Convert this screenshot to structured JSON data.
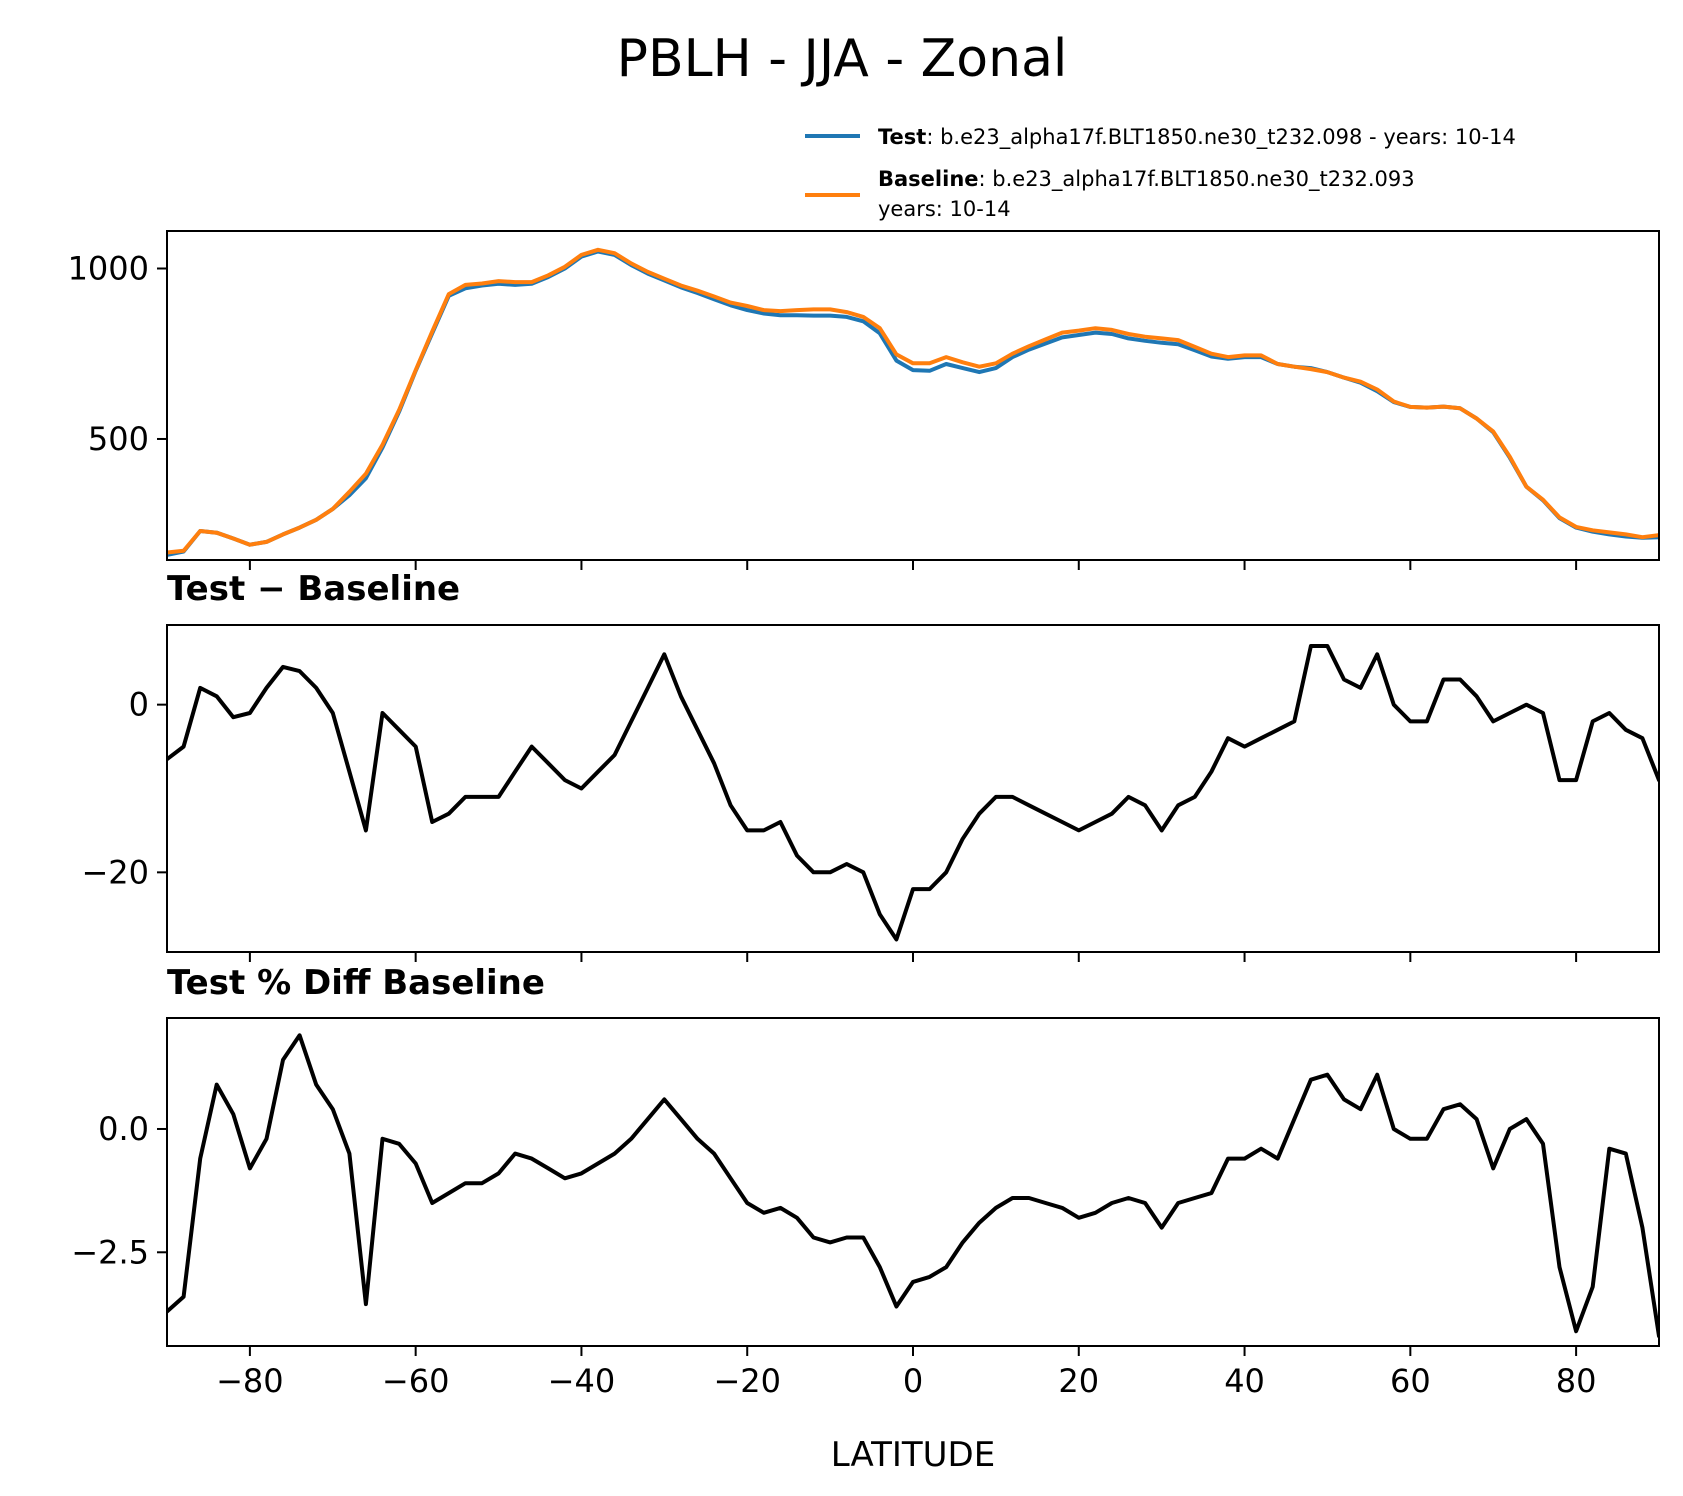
{
  "chart_data": [
    {
      "type": "line",
      "title": "PBLH - JJA - Zonal",
      "xlim": [
        -90,
        90
      ],
      "ylim": [
        145,
        1110
      ],
      "yticks": [
        500,
        1000
      ],
      "ytick_labels": [
        "500",
        "1000"
      ],
      "legend": {
        "placement": "upper-right outside",
        "entries": [
          {
            "name": "Test",
            "text": ": b.e23_alpha17f.BLT1850.ne30_t232.098 - years: 10-14",
            "text2": "",
            "color": "#1f77b4"
          },
          {
            "name": "Baseline",
            "text": ": b.e23_alpha17f.BLT1850.ne30_t232.093",
            "text2": "years: 10-14",
            "color": "#ff7f0e"
          }
        ]
      },
      "series": [
        {
          "name": "Test",
          "color": "#1f77b4",
          "x": [
            -90,
            -88,
            -86,
            -84,
            -82,
            -80,
            -78,
            -76,
            -74,
            -72,
            -70,
            -68,
            -66,
            -64,
            -62,
            -60,
            -58,
            -56,
            -54,
            -52,
            -50,
            -48,
            -46,
            -44,
            -42,
            -40,
            -38,
            -36,
            -34,
            -32,
            -30,
            -28,
            -26,
            -24,
            -22,
            -20,
            -18,
            -16,
            -14,
            -12,
            -10,
            -8,
            -6,
            -4,
            -2,
            0,
            2,
            4,
            6,
            8,
            10,
            12,
            14,
            16,
            18,
            20,
            22,
            24,
            26,
            28,
            30,
            32,
            34,
            36,
            38,
            40,
            42,
            44,
            46,
            48,
            50,
            52,
            54,
            56,
            58,
            60,
            62,
            64,
            66,
            68,
            70,
            72,
            74,
            76,
            78,
            80,
            82,
            84,
            86,
            88,
            90
          ],
          "y": [
            160,
            170,
            230,
            225,
            208,
            190,
            198,
            220,
            240,
            263,
            295,
            335,
            385,
            475,
            580,
            700,
            810,
            920,
            942,
            950,
            955,
            952,
            955,
            975,
            1000,
            1035,
            1050,
            1040,
            1010,
            985,
            965,
            945,
            928,
            910,
            892,
            878,
            868,
            863,
            863,
            862,
            862,
            858,
            845,
            810,
            730,
            702,
            700,
            720,
            708,
            696,
            708,
            740,
            762,
            780,
            798,
            805,
            812,
            808,
            795,
            788,
            782,
            778,
            760,
            742,
            735,
            740,
            740,
            720,
            712,
            708,
            696,
            680,
            665,
            640,
            608,
            594,
            592,
            595,
            590,
            560,
            520,
            445,
            360,
            320,
            268,
            240,
            228,
            220,
            214,
            210,
            212
          ]
        },
        {
          "name": "Baseline",
          "color": "#ff7f0e",
          "x": [
            -90,
            -88,
            -86,
            -84,
            -82,
            -80,
            -78,
            -76,
            -74,
            -72,
            -70,
            -68,
            -66,
            -64,
            -62,
            -60,
            -58,
            -56,
            -54,
            -52,
            -50,
            -48,
            -46,
            -44,
            -42,
            -40,
            -38,
            -36,
            -34,
            -32,
            -30,
            -28,
            -26,
            -24,
            -22,
            -20,
            -18,
            -16,
            -14,
            -12,
            -10,
            -8,
            -6,
            -4,
            -2,
            0,
            2,
            4,
            6,
            8,
            10,
            12,
            14,
            16,
            18,
            20,
            22,
            24,
            26,
            28,
            30,
            32,
            34,
            36,
            38,
            40,
            42,
            44,
            46,
            48,
            50,
            52,
            54,
            56,
            58,
            60,
            62,
            64,
            66,
            68,
            70,
            72,
            74,
            76,
            78,
            80,
            82,
            84,
            86,
            88,
            90
          ],
          "y": [
            167,
            172,
            230,
            225,
            208,
            190,
            198,
            220,
            240,
            263,
            295,
            345,
            398,
            483,
            585,
            702,
            815,
            925,
            952,
            956,
            963,
            960,
            960,
            980,
            1005,
            1040,
            1055,
            1045,
            1015,
            990,
            970,
            950,
            935,
            918,
            900,
            890,
            878,
            875,
            878,
            880,
            880,
            872,
            858,
            825,
            748,
            722,
            722,
            740,
            725,
            712,
            722,
            750,
            772,
            792,
            812,
            818,
            825,
            820,
            808,
            800,
            795,
            790,
            770,
            750,
            740,
            745,
            745,
            720,
            712,
            705,
            696,
            680,
            668,
            645,
            610,
            594,
            592,
            595,
            590,
            560,
            522,
            448,
            360,
            322,
            270,
            242,
            232,
            226,
            220,
            212,
            218
          ]
        }
      ]
    },
    {
      "type": "line",
      "title": "Test − Baseline",
      "xlim": [
        -90,
        90
      ],
      "ylim": [
        -29.5,
        9.5
      ],
      "yticks": [
        -20,
        0
      ],
      "ytick_labels": [
        "−20",
        "0"
      ],
      "series": [
        {
          "name": "",
          "color": "#000000",
          "x": [
            -90,
            -88,
            -86,
            -84,
            -82,
            -80,
            -78,
            -76,
            -74,
            -72,
            -70,
            -68,
            -66,
            -64,
            -62,
            -60,
            -58,
            -56,
            -54,
            -52,
            -50,
            -48,
            -46,
            -44,
            -42,
            -40,
            -38,
            -36,
            -34,
            -32,
            -30,
            -28,
            -26,
            -24,
            -22,
            -20,
            -18,
            -16,
            -14,
            -12,
            -10,
            -8,
            -6,
            -4,
            -2,
            0,
            2,
            4,
            6,
            8,
            10,
            12,
            14,
            16,
            18,
            20,
            22,
            24,
            26,
            28,
            30,
            32,
            34,
            36,
            38,
            40,
            42,
            44,
            46,
            48,
            50,
            52,
            54,
            56,
            58,
            60,
            62,
            64,
            66,
            68,
            70,
            72,
            74,
            76,
            78,
            80,
            82,
            84,
            86,
            88,
            90
          ],
          "y": [
            -6.5,
            -5,
            2,
            1,
            -1.5,
            -1,
            2,
            4.5,
            4,
            2,
            -1,
            -8,
            -15,
            -1,
            -3,
            -5,
            -14,
            -13,
            -11,
            -11,
            -11,
            -8,
            -5,
            -7,
            -9,
            -10,
            -8,
            -6,
            -2,
            2,
            6,
            1,
            -3,
            -7,
            -12,
            -15,
            -15,
            -14,
            -18,
            -20,
            -20,
            -19,
            -20,
            -25,
            -28,
            -22,
            -22,
            -20,
            -16,
            -13,
            -11,
            -11,
            -12,
            -13,
            -14,
            -15,
            -14,
            -13,
            -11,
            -12,
            -15,
            -12,
            -11,
            -8,
            -4,
            -5,
            -4,
            -3,
            -2,
            7,
            7,
            3,
            2,
            6,
            0,
            -2,
            -2,
            3,
            3,
            1,
            -2,
            -1,
            0,
            -1,
            -9,
            -9,
            -2,
            -1,
            -3,
            -4,
            -9
          ]
        }
      ]
    },
    {
      "type": "line",
      "title": "Test % Diff Baseline",
      "xlim": [
        -90,
        90
      ],
      "ylim": [
        -4.4,
        2.25
      ],
      "yticks": [
        -2.5,
        0.0
      ],
      "ytick_labels": [
        "−2.5",
        "0.0"
      ],
      "xticks": [
        -80,
        -60,
        -40,
        -20,
        0,
        20,
        40,
        60,
        80
      ],
      "xtick_labels": [
        "−80",
        "−60",
        "−40",
        "−20",
        "0",
        "20",
        "40",
        "60",
        "80"
      ],
      "xlabel": "LATITUDE",
      "series": [
        {
          "name": "",
          "color": "#000000",
          "x": [
            -90,
            -88,
            -86,
            -84,
            -82,
            -80,
            -78,
            -76,
            -74,
            -72,
            -70,
            -68,
            -66,
            -64,
            -62,
            -60,
            -58,
            -56,
            -54,
            -52,
            -50,
            -48,
            -46,
            -44,
            -42,
            -40,
            -38,
            -36,
            -34,
            -32,
            -30,
            -28,
            -26,
            -24,
            -22,
            -20,
            -18,
            -16,
            -14,
            -12,
            -10,
            -8,
            -6,
            -4,
            -2,
            0,
            2,
            4,
            6,
            8,
            10,
            12,
            14,
            16,
            18,
            20,
            22,
            24,
            26,
            28,
            30,
            32,
            34,
            36,
            38,
            40,
            42,
            44,
            46,
            48,
            50,
            52,
            54,
            56,
            58,
            60,
            62,
            64,
            66,
            68,
            70,
            72,
            74,
            76,
            78,
            80,
            82,
            84,
            86,
            88,
            90
          ],
          "y": [
            -3.7,
            -3.4,
            -0.6,
            0.9,
            0.3,
            -0.8,
            -0.2,
            1.4,
            1.9,
            0.9,
            0.4,
            -0.5,
            -3.55,
            -0.2,
            -0.3,
            -0.7,
            -1.5,
            -1.3,
            -1.1,
            -1.1,
            -0.9,
            -0.5,
            -0.6,
            -0.8,
            -1.0,
            -0.9,
            -0.7,
            -0.5,
            -0.2,
            0.2,
            0.6,
            0.2,
            -0.2,
            -0.5,
            -1.0,
            -1.5,
            -1.7,
            -1.6,
            -1.8,
            -2.2,
            -2.3,
            -2.2,
            -2.2,
            -2.8,
            -3.6,
            -3.1,
            -3.0,
            -2.8,
            -2.3,
            -1.9,
            -1.6,
            -1.4,
            -1.4,
            -1.5,
            -1.6,
            -1.8,
            -1.7,
            -1.5,
            -1.4,
            -1.5,
            -2.0,
            -1.5,
            -1.4,
            -1.3,
            -0.6,
            -0.6,
            -0.4,
            -0.6,
            0.2,
            1.0,
            1.1,
            0.6,
            0.4,
            1.1,
            0.0,
            -0.2,
            -0.2,
            0.4,
            0.5,
            0.2,
            -0.8,
            0.0,
            0.2,
            -0.3,
            -2.8,
            -4.1,
            -3.2,
            -0.4,
            -0.5,
            -2.0,
            -4.2
          ]
        }
      ]
    }
  ]
}
